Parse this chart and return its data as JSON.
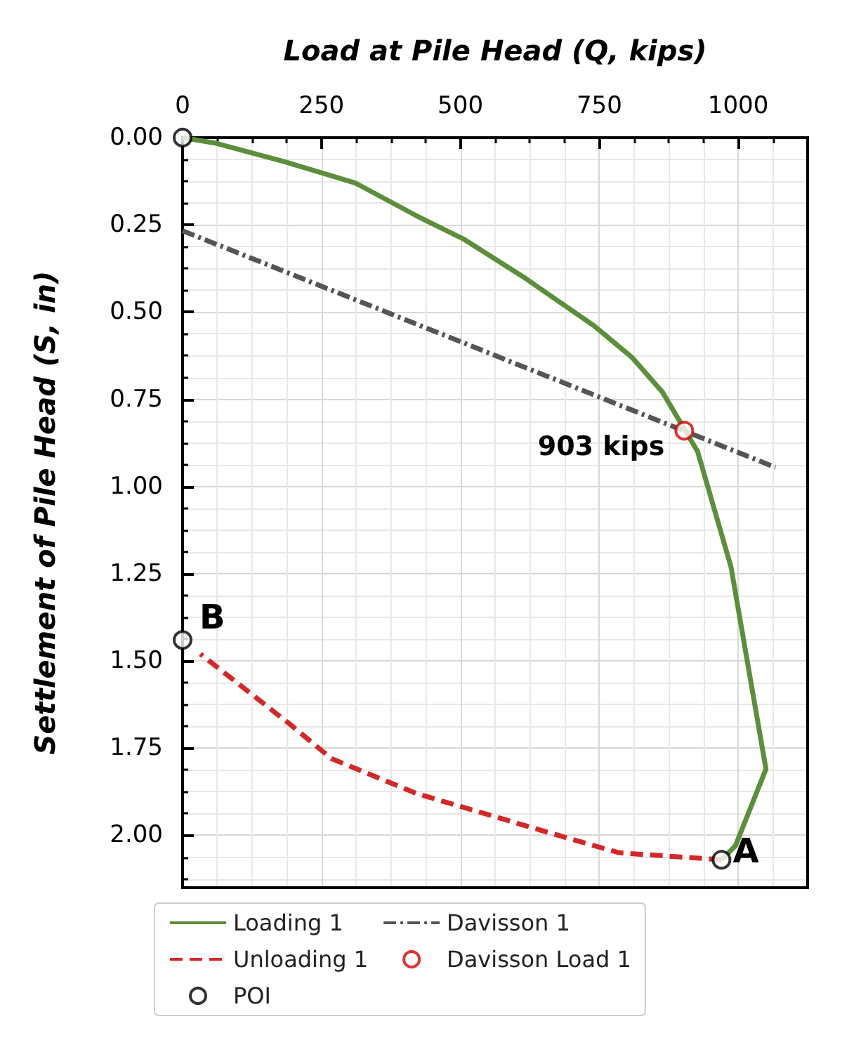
{
  "chart_data": {
    "type": "line",
    "xlabel": "Load at Pile Head (Q, kips)",
    "ylabel": "Settlement of Pile Head (S, in)",
    "xlim": [
      0,
      1125
    ],
    "xticks": [
      0,
      250,
      500,
      750,
      1000
    ],
    "ylim": [
      2.15,
      0
    ],
    "yticks": [
      {
        "value": 0,
        "label": "0.00"
      },
      {
        "value": 0.25,
        "label": "0.25"
      },
      {
        "value": 0.5,
        "label": "0.50"
      },
      {
        "value": 0.75,
        "label": "0.75"
      },
      {
        "value": 1,
        "label": "1.00"
      },
      {
        "value": 1.25,
        "label": "1.25"
      },
      {
        "value": 1.5,
        "label": "1.50"
      },
      {
        "value": 1.75,
        "label": "1.75"
      },
      {
        "value": 2,
        "label": "2.00"
      }
    ],
    "grid": true,
    "legend": "bottom",
    "series": [
      {
        "name": "Loading 1",
        "color": "#5b8f3a",
        "line_style": "solid",
        "marker": "none",
        "x": [
          0,
          57,
          184,
          311,
          421,
          505,
          614,
          741,
          809,
          864,
          927,
          987,
          1050,
          995,
          970
        ],
        "values": [
          0,
          0.015,
          0.069,
          0.13,
          0.224,
          0.29,
          0.4,
          0.54,
          0.63,
          0.73,
          0.9,
          1.23,
          1.81,
          2.03,
          2.07
        ]
      },
      {
        "name": "Unloading 1",
        "color": "#d62728",
        "line_style": "dashed",
        "marker": "none",
        "x": [
          970,
          786,
          676,
          421,
          268,
          192,
          32
        ],
        "values": [
          2.07,
          2.05,
          2.0,
          1.88,
          1.78,
          1.68,
          1.48
        ]
      },
      {
        "name": "Davisson 1",
        "color": "#555555",
        "line_style": "dashdot",
        "marker": "none",
        "x": [
          0,
          1067
        ],
        "values": [
          0.267,
          0.945
        ]
      },
      {
        "name": "Davisson Load 1",
        "type": "scatter",
        "color": "#d40000",
        "marker": "circle",
        "x": [
          903
        ],
        "values": [
          0.84
        ]
      },
      {
        "name": "POI",
        "type": "scatter",
        "color": "#000000",
        "marker": "circle",
        "x": [
          0,
          970,
          0
        ],
        "values": [
          0,
          2.07,
          1.44
        ]
      }
    ],
    "annotations": [
      {
        "text": "903 kips",
        "x": 903,
        "y": 0.84
      },
      {
        "text": "A",
        "x": 970,
        "y": 2.07
      },
      {
        "text": "B",
        "x": 0,
        "y": 1.44
      }
    ]
  }
}
